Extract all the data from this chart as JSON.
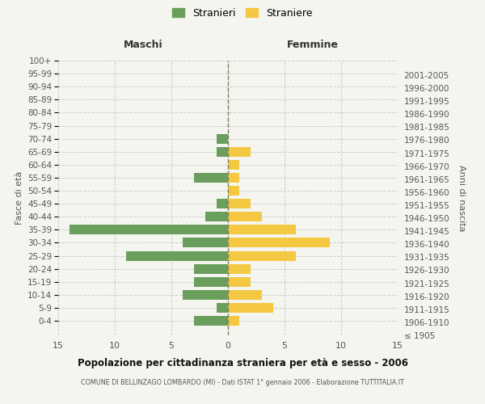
{
  "age_groups": [
    "100+",
    "95-99",
    "90-94",
    "85-89",
    "80-84",
    "75-79",
    "70-74",
    "65-69",
    "60-64",
    "55-59",
    "50-54",
    "45-49",
    "40-44",
    "35-39",
    "30-34",
    "25-29",
    "20-24",
    "15-19",
    "10-14",
    "5-9",
    "0-4"
  ],
  "birth_years": [
    "≤ 1905",
    "1906-1910",
    "1911-1915",
    "1916-1920",
    "1921-1925",
    "1926-1930",
    "1931-1935",
    "1936-1940",
    "1941-1945",
    "1946-1950",
    "1951-1955",
    "1956-1960",
    "1961-1965",
    "1966-1970",
    "1971-1975",
    "1976-1980",
    "1981-1985",
    "1986-1990",
    "1991-1995",
    "1996-2000",
    "2001-2005"
  ],
  "maschi": [
    0,
    0,
    0,
    0,
    0,
    0,
    1,
    1,
    0,
    3,
    0,
    1,
    2,
    14,
    4,
    9,
    3,
    3,
    4,
    1,
    3
  ],
  "femmine": [
    0,
    0,
    0,
    0,
    0,
    0,
    0,
    2,
    1,
    1,
    1,
    2,
    3,
    6,
    9,
    6,
    2,
    2,
    3,
    4,
    1
  ],
  "maschi_color": "#6a9e5c",
  "femmine_color": "#f5c842",
  "bg_color": "#f5f5f0",
  "grid_color": "#cccccc",
  "center_line_color": "#808060",
  "title": "Popolazione per cittadinanza straniera per età e sesso - 2006",
  "subtitle": "COMUNE DI BELLINZAGO LOMBARDO (MI) - Dati ISTAT 1° gennaio 2006 - Elaborazione TUTTITALIA.IT",
  "ylabel_left": "Fasce di età",
  "ylabel_right": "Anni di nascita",
  "xlabel_left": "Maschi",
  "xlabel_right": "Femmine",
  "legend_maschi": "Stranieri",
  "legend_femmine": "Straniere",
  "xlim": 15
}
